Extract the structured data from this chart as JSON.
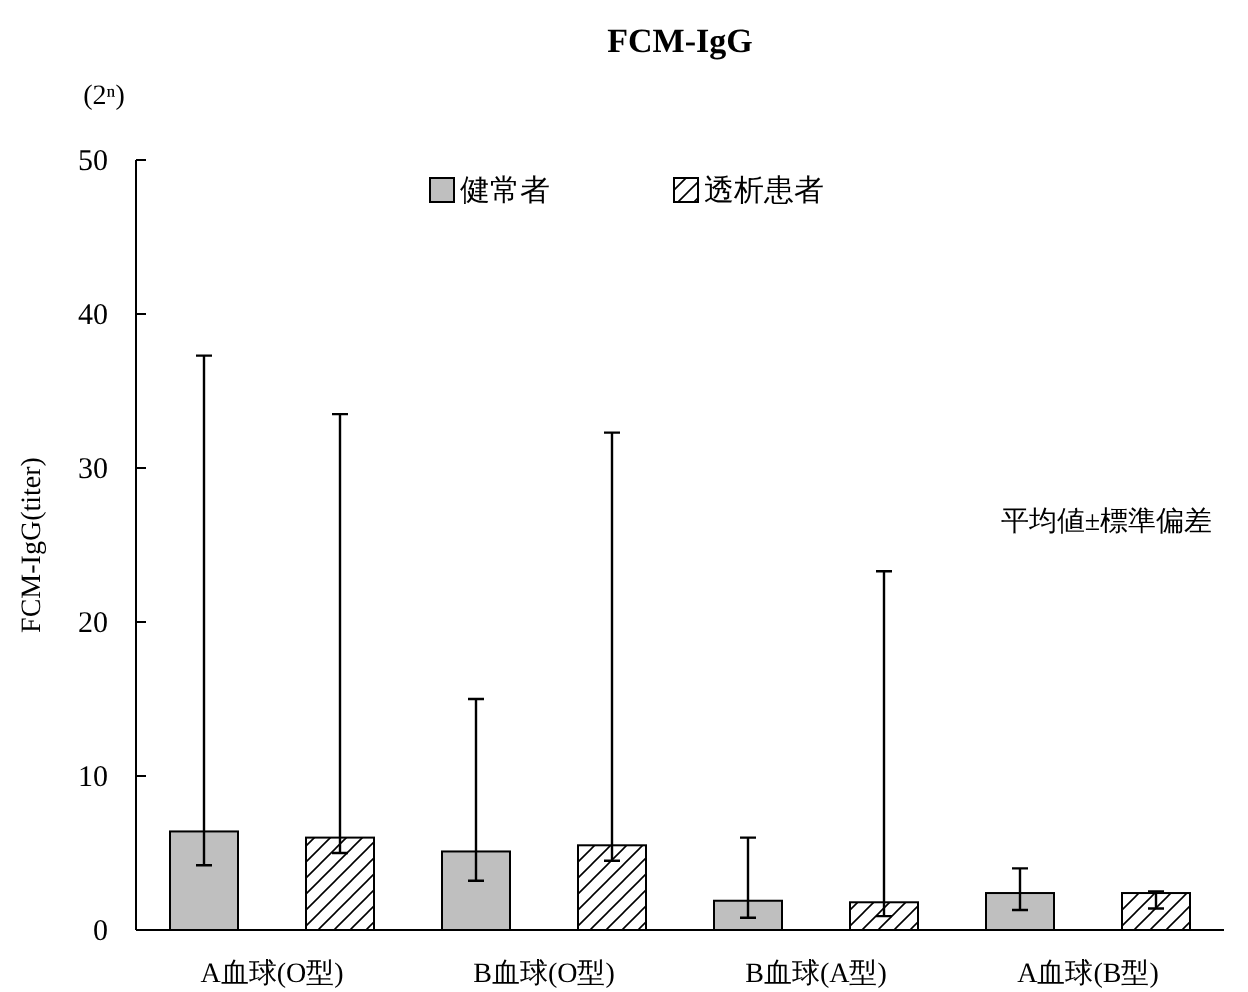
{
  "chart_data": {
    "type": "bar",
    "title": "FCM-IgG",
    "ylabel": "FCM-IgG(titer)",
    "categories": [
      "A血球(O型)",
      "B血球(O型)",
      "B血球(A型)",
      "A血球(B型)"
    ],
    "series": [
      {
        "name": "健常者",
        "color": "#bfbfbf",
        "values": [
          6.4,
          5.1,
          1.9,
          2.4
        ],
        "errors": [
          [
            4.2,
            37.3
          ],
          [
            3.2,
            15.0
          ],
          [
            0.8,
            6.0
          ],
          [
            1.3,
            4.0
          ]
        ]
      },
      {
        "name": "透析患者",
        "color": "#000000",
        "values": [
          6.0,
          5.5,
          1.8,
          2.4
        ],
        "errors": [
          [
            5.0,
            33.5
          ],
          [
            4.5,
            32.3
          ],
          [
            0.9,
            23.3
          ],
          [
            1.4,
            2.5
          ]
        ]
      }
    ],
    "ylim": [
      0,
      50
    ],
    "yticks": [
      0,
      10,
      20,
      30,
      40,
      50
    ],
    "legend": "top",
    "annotations": [
      "(2ⁿ)",
      "平均値±標準偏差"
    ]
  }
}
